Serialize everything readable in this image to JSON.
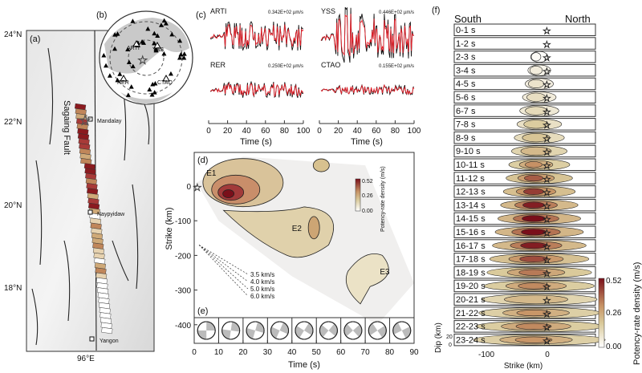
{
  "chart_data": [
    {
      "panel": "(a)",
      "type": "map",
      "lat_ticks": [
        "24°N",
        "22°N",
        "20°N",
        "18°N"
      ],
      "lon_ticks": [
        "96°E"
      ],
      "fault_label": "Sagaing Fault",
      "cities": [
        "Mandalay",
        "Naypyidaw",
        "Yangon"
      ]
    },
    {
      "panel": "(b)",
      "type": "scatter",
      "description_stations": [
        "ARTI",
        "YSS",
        "RER",
        "CTAO"
      ]
    },
    {
      "panel": "(c)",
      "type": "line",
      "xlabel": "Time (s)",
      "xlim": [
        0,
        100
      ],
      "xticks": [
        "0",
        "20",
        "40",
        "60",
        "80",
        "100"
      ],
      "series_colors": {
        "observed": "#111111",
        "synthetic": "#e8202a"
      },
      "stations": [
        {
          "name": "ARTI",
          "amplitude": "0.342E+02 µm/s",
          "seed": 3,
          "shape": "early"
        },
        {
          "name": "YSS",
          "amplitude": "0.446E+02 µm/s",
          "seed": 7,
          "shape": "spike"
        },
        {
          "name": "RER",
          "amplitude": "0.250E+02 µm/s",
          "seed": 11,
          "shape": "flat"
        },
        {
          "name": "CTAO",
          "amplitude": "0.155E+02 µm/s",
          "seed": 19,
          "shape": "small"
        }
      ]
    },
    {
      "panel": "(d)",
      "type": "heatmap",
      "xlabel": "Time (s)",
      "ylabel": "Strike (km)",
      "xlim": [
        0,
        90
      ],
      "ylim": [
        -450,
        90
      ],
      "xticks": [
        "0",
        "10",
        "20",
        "30",
        "40",
        "50",
        "60",
        "70",
        "80",
        "90"
      ],
      "yticks": [
        "0",
        "-100",
        "-200",
        "-300",
        "-400"
      ],
      "subevents": [
        {
          "label": "E1",
          "t": 15,
          "strike": -20
        },
        {
          "label": "E2",
          "t": 45,
          "strike": -120
        },
        {
          "label": "E3",
          "t": 70,
          "strike": -250
        }
      ],
      "speed_lines": [
        "3.5 km/s",
        "4.0 km/s",
        "5.0 km/s",
        "6.0 km/s"
      ],
      "colorbar": {
        "label": "Potency-rate density (m/s)",
        "ticks": [
          "0.52",
          "0.26",
          "0.00"
        ],
        "max": 0.52
      }
    },
    {
      "panel": "(e)",
      "type": "scatter",
      "mechanism_windows_s": [
        [
          0,
          10
        ],
        [
          10,
          20
        ],
        [
          20,
          30
        ],
        [
          30,
          40
        ],
        [
          40,
          50
        ],
        [
          50,
          60
        ],
        [
          60,
          70
        ],
        [
          70,
          80
        ],
        [
          80,
          90
        ]
      ]
    },
    {
      "panel": "(f)",
      "type": "heatmap",
      "top_left": "South",
      "top_right": "North",
      "xlabel": "Strike (km)",
      "ylabel": "Dip (km)",
      "xticks": [
        "-100",
        "0"
      ],
      "dip_ticks": [
        "20",
        "0"
      ],
      "rows": [
        "0-1 s",
        "1-2 s",
        "2-3 s",
        "3-4 s",
        "4-5 s",
        "5-6 s",
        "6-7 s",
        "7-8 s",
        "8-9 s",
        "9-10 s",
        "10-11 s",
        "11-12 s",
        "12-13 s",
        "13-14 s",
        "14-15 s",
        "15-16 s",
        "16-17 s",
        "17-18 s",
        "18-19 s",
        "19-20 s",
        "20-21 s",
        "21-22 s",
        "22-23 s",
        "23-24 s"
      ],
      "row_peak_intensity": [
        0,
        0,
        0.02,
        0.08,
        0.12,
        0.14,
        0.16,
        0.22,
        0.25,
        0.3,
        0.35,
        0.42,
        0.46,
        0.5,
        0.52,
        0.52,
        0.5,
        0.44,
        0.38,
        0.36,
        0.3,
        0.34,
        0.36,
        0.34
      ],
      "colorbar": {
        "label": "Potency-rate density (m/s)",
        "ticks": [
          "0.52",
          "0.26",
          "0.00"
        ]
      }
    }
  ],
  "labels": {
    "a": "(a)",
    "b": "(b)",
    "c": "(c)",
    "d": "(d)",
    "e": "(e)",
    "f": "(f)"
  }
}
